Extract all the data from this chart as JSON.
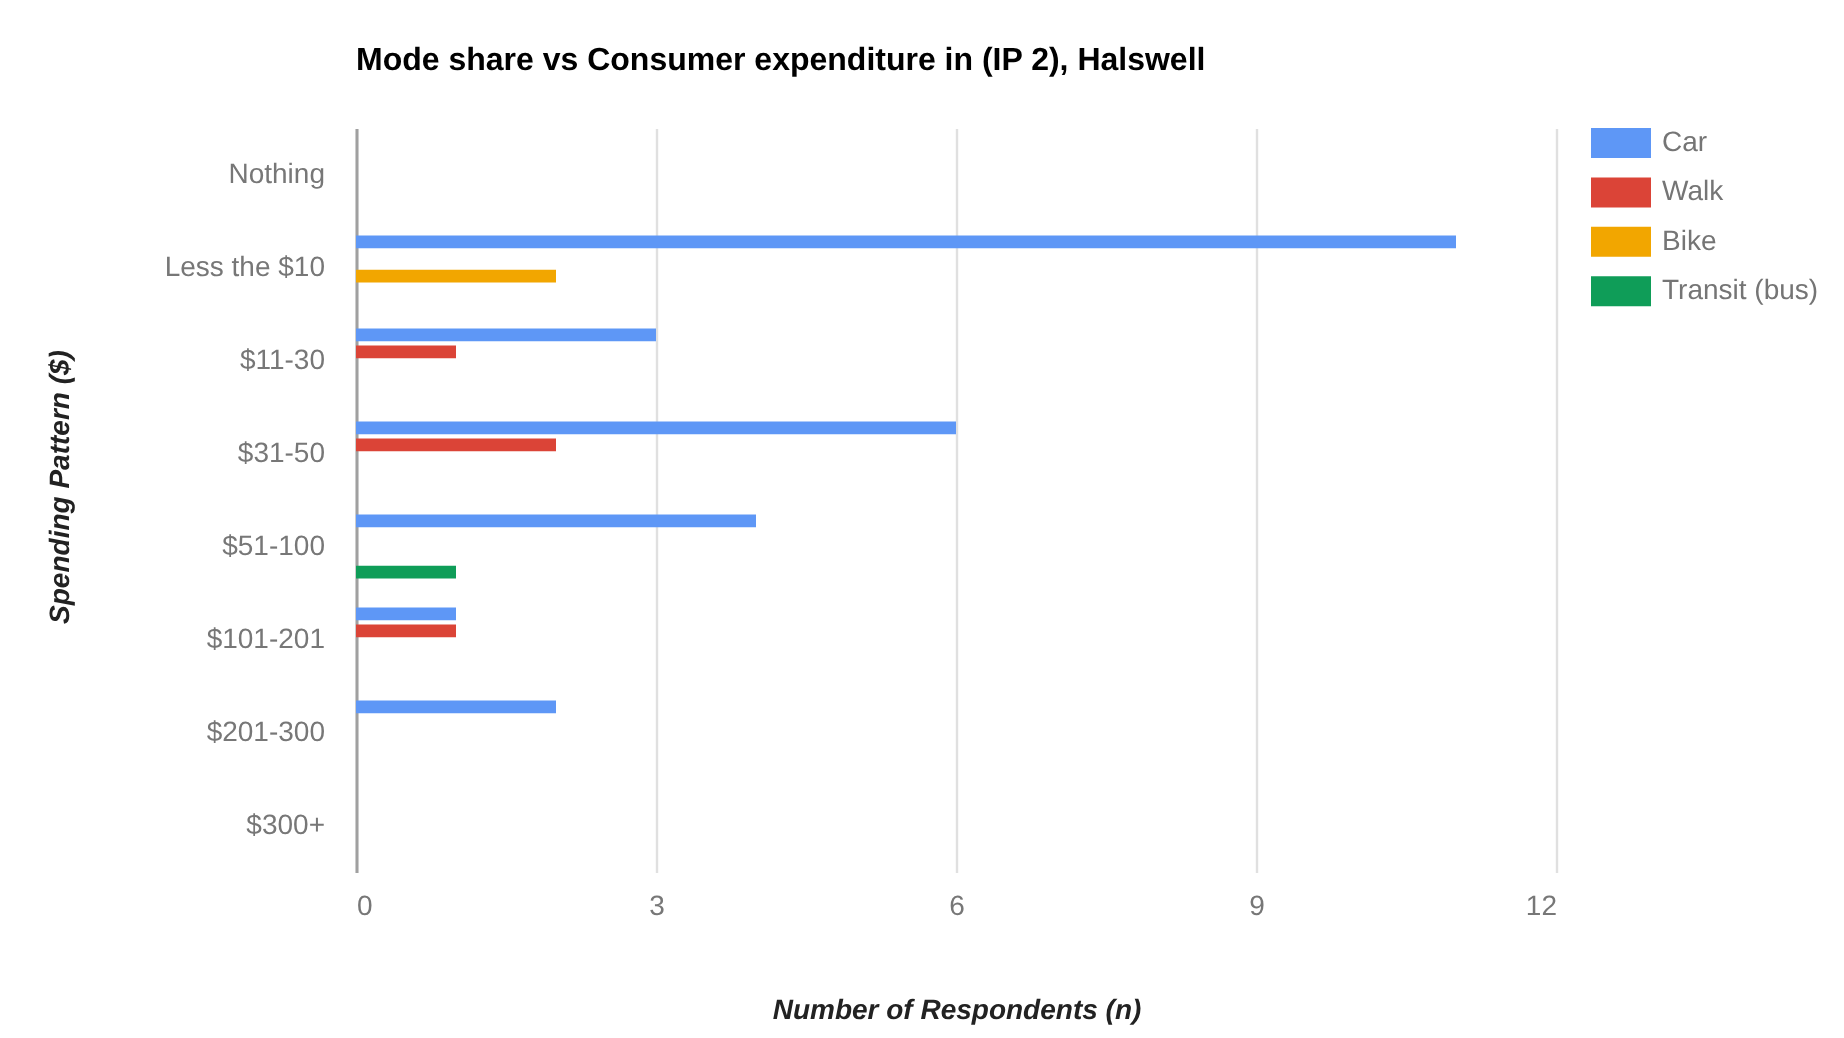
{
  "chart_data": {
    "type": "bar",
    "orientation": "horizontal",
    "title": "Mode share vs Consumer expenditure in (IP 2), Halswell",
    "xlabel": "Number of Respondents (n)",
    "ylabel": "Spending Pattern ($)",
    "categories": [
      "Nothing",
      "Less the $10",
      "$11-30",
      "$31-50",
      "$51-100",
      "$101-201",
      "$201-300",
      "$300+"
    ],
    "series": [
      {
        "name": "Car",
        "color": "#5e97f6",
        "values": [
          0,
          11,
          3,
          6,
          4,
          1,
          2,
          0
        ]
      },
      {
        "name": "Walk",
        "color": "#db4437",
        "values": [
          0,
          0,
          1,
          2,
          0,
          1,
          0,
          0
        ]
      },
      {
        "name": "Bike",
        "color": "#f2a600",
        "values": [
          0,
          2,
          0,
          0,
          0,
          0,
          0,
          0
        ]
      },
      {
        "name": "Transit (bus)",
        "color": "#0f9d58",
        "values": [
          0,
          0,
          0,
          0,
          1,
          0,
          0,
          0
        ]
      }
    ],
    "xlim": [
      0,
      12
    ],
    "xticks": [
      0,
      3,
      6,
      9,
      12
    ],
    "grid": "x",
    "legend": "top right"
  }
}
